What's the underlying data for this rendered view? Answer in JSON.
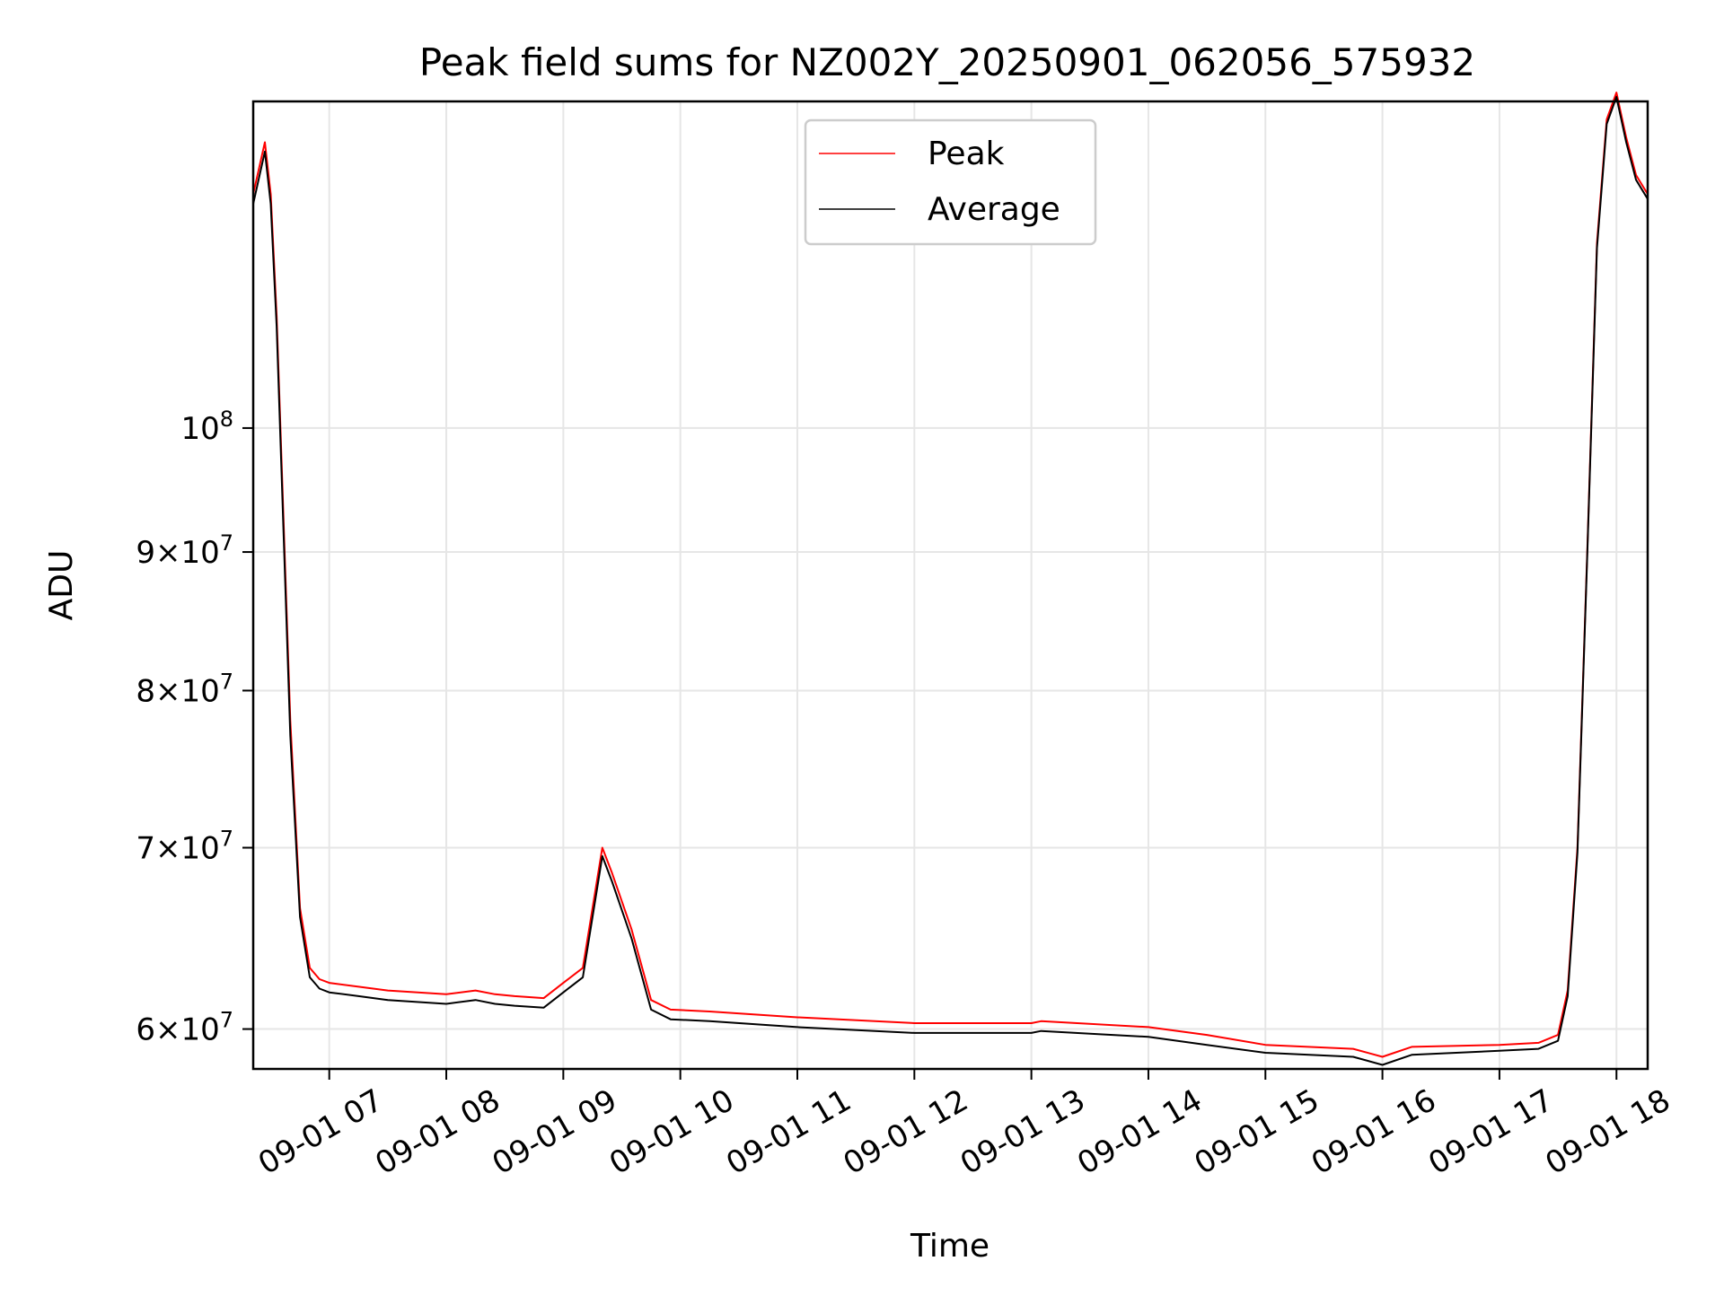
{
  "chart_data": {
    "type": "line",
    "title": "Peak field sums for NZ002Y_20250901_062056_575932",
    "xlabel": "Time",
    "ylabel": "ADU",
    "y_scale": "log",
    "grid": true,
    "legend_position": "top-center",
    "x_tick_labels": [
      "09-01 07",
      "09-01 08",
      "09-01 09",
      "09-01 10",
      "09-01 11",
      "09-01 12",
      "09-01 13",
      "09-01 14",
      "09-01 15",
      "09-01 16",
      "09-01 17",
      "09-01 18"
    ],
    "x_ticks": [
      "2025-09-01 07:00",
      "2025-09-01 08:00",
      "2025-09-01 09:00",
      "2025-09-01 10:00",
      "2025-09-01 11:00",
      "2025-09-01 12:00",
      "2025-09-01 13:00",
      "2025-09-01 14:00",
      "2025-09-01 15:00",
      "2025-09-01 16:00",
      "2025-09-01 17:00",
      "2025-09-01 18:00"
    ],
    "xlim": [
      "2025-09-01 06:21",
      "2025-09-01 18:16"
    ],
    "ylim": [
      58000000,
      132000000
    ],
    "y_ticks": [
      {
        "value": 60000000,
        "mantissa": "6",
        "exponent": "7"
      },
      {
        "value": 70000000,
        "mantissa": "7",
        "exponent": "7"
      },
      {
        "value": 80000000,
        "mantissa": "8",
        "exponent": "7"
      },
      {
        "value": 90000000,
        "mantissa": "9",
        "exponent": "7"
      },
      {
        "value": 100000000,
        "mantissa": "",
        "exponent": "8"
      }
    ],
    "x": [
      "2025-09-01 06:21",
      "2025-09-01 06:27",
      "2025-09-01 06:30",
      "2025-09-01 06:33",
      "2025-09-01 06:36",
      "2025-09-01 06:40",
      "2025-09-01 06:45",
      "2025-09-01 06:50",
      "2025-09-01 06:55",
      "2025-09-01 07:00",
      "2025-09-01 07:15",
      "2025-09-01 07:30",
      "2025-09-01 08:00",
      "2025-09-01 08:15",
      "2025-09-01 08:25",
      "2025-09-01 08:35",
      "2025-09-01 08:50",
      "2025-09-01 09:00",
      "2025-09-01 09:10",
      "2025-09-01 09:20",
      "2025-09-01 09:25",
      "2025-09-01 09:35",
      "2025-09-01 09:45",
      "2025-09-01 09:55",
      "2025-09-01 10:15",
      "2025-09-01 11:00",
      "2025-09-01 12:00",
      "2025-09-01 13:00",
      "2025-09-01 13:05",
      "2025-09-01 14:00",
      "2025-09-01 14:30",
      "2025-09-01 15:00",
      "2025-09-01 15:45",
      "2025-09-01 16:00",
      "2025-09-01 16:15",
      "2025-09-01 17:00",
      "2025-09-01 17:20",
      "2025-09-01 17:30",
      "2025-09-01 17:35",
      "2025-09-01 17:40",
      "2025-09-01 17:45",
      "2025-09-01 17:50",
      "2025-09-01 17:55",
      "2025-09-01 18:00",
      "2025-09-01 18:05",
      "2025-09-01 18:10",
      "2025-09-01 18:16"
    ],
    "series": [
      {
        "name": "Peak",
        "color": "#ff0000",
        "values": [
          122000000,
          127500000,
          122000000,
          110000000,
          95000000,
          78000000,
          66500000,
          63200000,
          62600000,
          62400000,
          62200000,
          62000000,
          61800000,
          62000000,
          61800000,
          61700000,
          61600000,
          62400000,
          63200000,
          70000000,
          68500000,
          65300000,
          61500000,
          61000000,
          60900000,
          60600000,
          60300000,
          60300000,
          60400000,
          60100000,
          59700000,
          59200000,
          59000000,
          58600000,
          59100000,
          59200000,
          59300000,
          59700000,
          62000000,
          70000000,
          90000000,
          117000000,
          130000000,
          133000000,
          128000000,
          124000000,
          122000000
        ]
      },
      {
        "name": "Average",
        "color": "#000000",
        "values": [
          121000000,
          126500000,
          121000000,
          109000000,
          94000000,
          77000000,
          66000000,
          62700000,
          62100000,
          61900000,
          61700000,
          61500000,
          61300000,
          61500000,
          61300000,
          61200000,
          61100000,
          61900000,
          62700000,
          69500000,
          68000000,
          64800000,
          61000000,
          60500000,
          60400000,
          60100000,
          59800000,
          59800000,
          59900000,
          59600000,
          59200000,
          58800000,
          58600000,
          58200000,
          58700000,
          58900000,
          59000000,
          59400000,
          61700000,
          69700000,
          89700000,
          116500000,
          129500000,
          132500000,
          127500000,
          123500000,
          121500000
        ]
      }
    ]
  }
}
